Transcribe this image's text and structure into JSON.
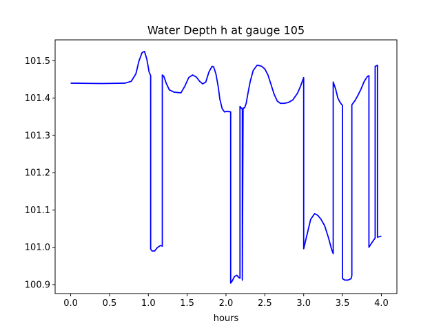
{
  "chart_data": {
    "type": "line",
    "title": "Water Depth h at gauge 105",
    "xlabel": "hours",
    "ylabel": "",
    "xlim": [
      -0.2,
      4.2
    ],
    "ylim": [
      100.876,
      101.556
    ],
    "xticks": [
      {
        "value": 0.0,
        "label": "0.0"
      },
      {
        "value": 0.5,
        "label": "0.5"
      },
      {
        "value": 1.0,
        "label": "1.0"
      },
      {
        "value": 1.5,
        "label": "1.5"
      },
      {
        "value": 2.0,
        "label": "2.0"
      },
      {
        "value": 2.5,
        "label": "2.5"
      },
      {
        "value": 3.0,
        "label": "3.0"
      },
      {
        "value": 3.5,
        "label": "3.5"
      },
      {
        "value": 4.0,
        "label": "4.0"
      }
    ],
    "yticks": [
      {
        "value": 100.9,
        "label": "100.9"
      },
      {
        "value": 101.0,
        "label": "101.0"
      },
      {
        "value": 101.1,
        "label": "101.1"
      },
      {
        "value": 101.2,
        "label": "101.2"
      },
      {
        "value": 101.3,
        "label": "101.3"
      },
      {
        "value": 101.4,
        "label": "101.4"
      },
      {
        "value": 101.5,
        "label": "101.5"
      }
    ],
    "grid": false,
    "series": [
      {
        "color": "#0000ff",
        "x": [
          0.0,
          0.4,
          0.7,
          0.78,
          0.84,
          0.88,
          0.92,
          0.95,
          0.98,
          1.01,
          1.03,
          1.03,
          1.05,
          1.08,
          1.12,
          1.16,
          1.18,
          1.18,
          1.2,
          1.23,
          1.27,
          1.33,
          1.42,
          1.47,
          1.52,
          1.57,
          1.62,
          1.66,
          1.7,
          1.74,
          1.78,
          1.82,
          1.84,
          1.87,
          1.9,
          1.92,
          1.95,
          1.98,
          2.0,
          2.03,
          2.06,
          2.06,
          2.08,
          2.11,
          2.14,
          2.16,
          2.18,
          2.18,
          2.19,
          2.21,
          2.21,
          2.22,
          2.24,
          2.26,
          2.28,
          2.31,
          2.35,
          2.4,
          2.43,
          2.46,
          2.5,
          2.54,
          2.58,
          2.62,
          2.66,
          2.7,
          2.75,
          2.8,
          2.86,
          2.92,
          2.96,
          3.0,
          3.0,
          3.05,
          3.09,
          3.14,
          3.18,
          3.22,
          3.27,
          3.32,
          3.36,
          3.38,
          3.38,
          3.41,
          3.44,
          3.47,
          3.5,
          3.5,
          3.53,
          3.57,
          3.61,
          3.62,
          3.62,
          3.66,
          3.7,
          3.74,
          3.78,
          3.82,
          3.84,
          3.84,
          3.87,
          3.92,
          3.92,
          3.95,
          3.95,
          4.0
        ],
        "values": [
          101.44,
          101.439,
          101.44,
          101.445,
          101.465,
          101.5,
          101.522,
          101.525,
          101.505,
          101.47,
          101.46,
          100.995,
          100.99,
          100.99,
          101.0,
          101.005,
          101.003,
          101.462,
          101.458,
          101.44,
          101.422,
          101.416,
          101.414,
          101.432,
          101.455,
          101.462,
          101.456,
          101.445,
          101.438,
          101.443,
          101.47,
          101.485,
          101.484,
          101.465,
          101.43,
          101.398,
          101.372,
          101.363,
          101.364,
          101.364,
          101.363,
          100.904,
          100.91,
          100.922,
          100.925,
          100.92,
          100.917,
          101.378,
          101.375,
          101.37,
          100.912,
          101.373,
          101.374,
          101.386,
          101.41,
          101.443,
          101.474,
          101.488,
          101.487,
          101.485,
          101.478,
          101.462,
          101.436,
          101.41,
          101.392,
          101.386,
          101.386,
          101.388,
          101.395,
          101.413,
          101.432,
          101.455,
          100.996,
          101.04,
          101.075,
          101.09,
          101.086,
          101.076,
          101.058,
          101.025,
          100.994,
          100.983,
          101.443,
          101.425,
          101.4,
          101.388,
          101.38,
          100.916,
          100.912,
          100.912,
          100.916,
          100.924,
          101.382,
          101.393,
          101.408,
          101.425,
          101.445,
          101.458,
          101.46,
          101.0,
          101.01,
          101.025,
          101.485,
          101.488,
          101.027,
          101.03
        ]
      }
    ]
  }
}
